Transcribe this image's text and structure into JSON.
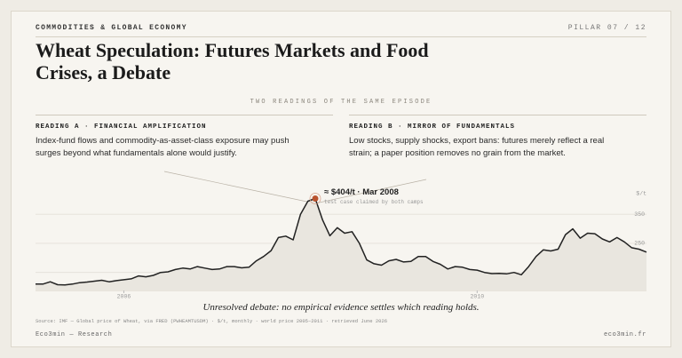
{
  "header": {
    "kicker": "COMMODITIES & GLOBAL ECONOMY",
    "pillar": "PILLAR 07 / 12"
  },
  "title": "Wheat Speculation: Futures Markets and Food Crises, a Debate",
  "subtitle": "TWO READINGS OF THE SAME EPISODE",
  "readings": [
    {
      "heading": "READING A · FINANCIAL AMPLIFICATION",
      "text": "Index-fund flows and commodity-as-asset-class exposure may push surges beyond what fundamentals alone would justify."
    },
    {
      "heading": "READING B · MIRROR OF FUNDAMENTALS",
      "text": "Low stocks, supply shocks, export bans: futures merely reflect a real strain; a paper position removes no grain from the market."
    }
  ],
  "chart_data": {
    "type": "line",
    "y_unit": "$/t",
    "annotation": {
      "label": "≈ $404/t · Mar 2008",
      "note": "test case claimed by both camps"
    },
    "x": [
      2005.0,
      2005.083,
      2005.167,
      2005.25,
      2005.333,
      2005.417,
      2005.5,
      2005.583,
      2005.667,
      2005.75,
      2005.833,
      2005.917,
      2006.0,
      2006.083,
      2006.167,
      2006.25,
      2006.333,
      2006.417,
      2006.5,
      2006.583,
      2006.667,
      2006.75,
      2006.833,
      2006.917,
      2007.0,
      2007.083,
      2007.167,
      2007.25,
      2007.333,
      2007.417,
      2007.5,
      2007.583,
      2007.667,
      2007.75,
      2007.833,
      2007.917,
      2008.0,
      2008.083,
      2008.167,
      2008.25,
      2008.333,
      2008.417,
      2008.5,
      2008.583,
      2008.667,
      2008.75,
      2008.833,
      2008.917,
      2009.0,
      2009.083,
      2009.167,
      2009.25,
      2009.333,
      2009.417,
      2009.5,
      2009.583,
      2009.667,
      2009.75,
      2009.833,
      2009.917,
      2010.0,
      2010.083,
      2010.167,
      2010.25,
      2010.333,
      2010.417,
      2010.5,
      2010.583,
      2010.667,
      2010.75,
      2010.833,
      2010.917,
      2011.0,
      2011.083,
      2011.167,
      2011.25,
      2011.333,
      2011.417,
      2011.5,
      2011.583,
      2011.667,
      2011.75,
      2011.833,
      2011.917
    ],
    "series": [
      {
        "name": "Wheat price",
        "color": "#222222",
        "values": [
          110,
          110,
          118,
          108,
          107,
          110,
          115,
          117,
          120,
          123,
          118,
          122,
          125,
          128,
          138,
          135,
          140,
          150,
          152,
          160,
          165,
          162,
          170,
          165,
          160,
          162,
          170,
          170,
          166,
          168,
          190,
          205,
          225,
          270,
          275,
          262,
          350,
          395,
          404,
          330,
          276,
          304,
          285,
          290,
          250,
          193,
          180,
          175,
          190,
          195,
          186,
          188,
          205,
          205,
          188,
          178,
          162,
          170,
          168,
          160,
          158,
          150,
          146,
          147,
          145,
          150,
          142,
          170,
          205,
          228,
          224,
          230,
          280,
          300,
          268,
          285,
          283,
          265,
          255,
          270,
          255,
          235,
          230,
          220
        ]
      }
    ],
    "xlim": [
      2005.0,
      2011.917
    ],
    "xticks": [
      2006,
      2010
    ],
    "ylim": [
      88,
      430
    ],
    "yticks": [
      150,
      250,
      350
    ],
    "grid": true
  },
  "caption": "Unresolved debate: no empirical evidence settles which reading holds.",
  "source": "Source: IMF — Global price of Wheat, via FRED (PWHEAMTUSDM) · $/t, monthly · world price 2005–2011 · retrieved June 2026",
  "footer": {
    "left": "Eco3min — Research",
    "right": "eco3min.fr"
  }
}
